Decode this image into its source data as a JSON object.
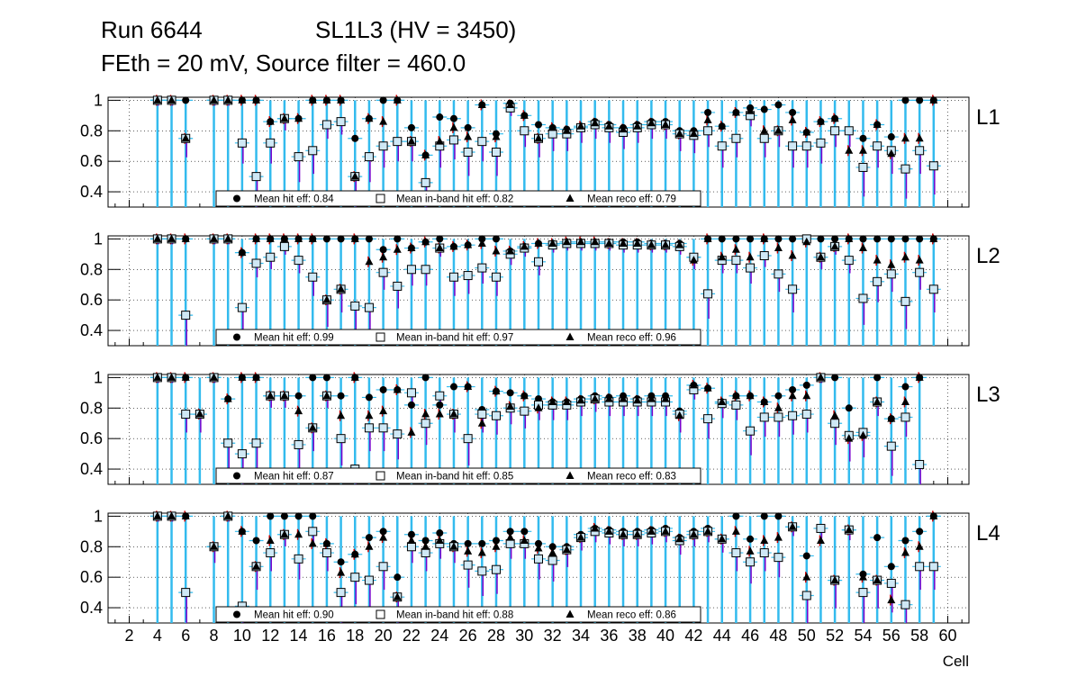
{
  "header": {
    "run": "Run 6644",
    "superlayer": "SL1L3 (HV = 3450)",
    "settings": "FEth = 20 mV, Source filter = 460.0"
  },
  "colors": {
    "hit_err": "#33bbee",
    "inband_err": "#7700cc",
    "reco_err": "#cc0000",
    "inband_fill": "#cfe8f5",
    "marker": "#000000"
  },
  "chart_data": {
    "type": "scatter",
    "xlabel": "Cell",
    "xlim": [
      0.5,
      61.5
    ],
    "ylim": [
      0.3,
      1.02
    ],
    "x_ticks": [
      2,
      4,
      6,
      8,
      10,
      12,
      14,
      16,
      18,
      20,
      22,
      24,
      26,
      28,
      30,
      32,
      34,
      36,
      38,
      40,
      42,
      44,
      46,
      48,
      50,
      52,
      54,
      56,
      58,
      60
    ],
    "x_tick_labels": [
      "2",
      "4",
      "6",
      "8",
      "10",
      "12",
      "14",
      "16",
      "18",
      "20",
      "22",
      "24",
      "26",
      "28",
      "30",
      "32",
      "34",
      "36",
      "38",
      "40",
      "42",
      "44",
      "46",
      "48",
      "50",
      "52",
      "54",
      "56",
      "58",
      "60"
    ],
    "y_ticks": [
      0.4,
      0.6,
      0.8,
      1.0
    ],
    "y_tick_labels": [
      "0.4",
      "0.6",
      "0.8",
      "1"
    ],
    "grid": true,
    "legend_location": "bottom-center",
    "panels": [
      {
        "label": "L1",
        "legend": [
          "Mean hit  eff: 0.84",
          "Mean in-band hit eff: 0.82",
          "Mean reco eff: 0.79"
        ],
        "cells": [
          4,
          5,
          6,
          8,
          9,
          10,
          11,
          12,
          13,
          14,
          15,
          16,
          17,
          18,
          19,
          20,
          21,
          22,
          23,
          24,
          25,
          26,
          27,
          28,
          29,
          30,
          31,
          32,
          33,
          34,
          35,
          36,
          37,
          38,
          39,
          40,
          41,
          42,
          43,
          44,
          45,
          46,
          47,
          48,
          49,
          50,
          51,
          52,
          53,
          54,
          55,
          56,
          57,
          58,
          59
        ],
        "hit": [
          1.0,
          1.0,
          1.0,
          1.0,
          1.0,
          1.0,
          1.0,
          0.86,
          0.88,
          0.88,
          1.0,
          1.0,
          1.0,
          0.75,
          0.88,
          1.0,
          1.0,
          0.82,
          0.64,
          0.89,
          0.88,
          0.82,
          0.97,
          0.78,
          0.98,
          0.9,
          0.84,
          0.82,
          0.81,
          0.83,
          0.86,
          0.84,
          0.82,
          0.84,
          0.86,
          0.86,
          0.8,
          0.8,
          0.92,
          0.83,
          0.92,
          0.95,
          0.94,
          0.97,
          0.92,
          0.79,
          0.86,
          0.88,
          0.8,
          0.75,
          0.84,
          0.76,
          1.0,
          1.0,
          1.0
        ],
        "inband": [
          1.0,
          1.0,
          0.75,
          1.0,
          1.0,
          0.72,
          0.5,
          0.72,
          0.88,
          0.63,
          0.67,
          0.84,
          0.86,
          0.5,
          0.63,
          0.7,
          0.73,
          0.73,
          0.46,
          0.7,
          0.74,
          0.66,
          0.73,
          0.66,
          0.95,
          0.8,
          0.75,
          0.78,
          0.78,
          0.82,
          0.84,
          0.82,
          0.79,
          0.82,
          0.84,
          0.84,
          0.78,
          0.77,
          0.8,
          0.7,
          0.75,
          0.9,
          0.75,
          0.8,
          0.7,
          0.7,
          0.72,
          0.8,
          0.8,
          0.56,
          0.7,
          0.67,
          0.55,
          0.67,
          0.57
        ],
        "reco": [
          1.0,
          1.0,
          0.75,
          1.0,
          1.0,
          1.0,
          1.0,
          0.86,
          0.88,
          0.88,
          1.0,
          1.0,
          1.0,
          0.5,
          0.88,
          0.86,
          1.0,
          0.73,
          0.64,
          0.73,
          0.82,
          0.76,
          0.97,
          0.76,
          0.97,
          0.9,
          0.75,
          0.82,
          0.8,
          0.83,
          0.85,
          0.83,
          0.81,
          0.83,
          0.85,
          0.84,
          0.78,
          0.78,
          0.87,
          0.83,
          0.92,
          0.93,
          0.8,
          0.8,
          0.87,
          0.79,
          0.86,
          0.88,
          0.67,
          0.67,
          0.84,
          0.65,
          0.75,
          0.75,
          1.0
        ]
      },
      {
        "label": "L2",
        "legend": [
          "Mean hit  eff: 0.99",
          "Mean in-band hit eff: 0.97",
          "Mean reco eff: 0.96"
        ],
        "cells": [
          4,
          5,
          6,
          8,
          9,
          10,
          11,
          12,
          13,
          14,
          15,
          16,
          17,
          18,
          19,
          20,
          21,
          22,
          23,
          24,
          25,
          26,
          27,
          28,
          29,
          30,
          31,
          32,
          33,
          34,
          35,
          36,
          37,
          38,
          39,
          40,
          41,
          42,
          43,
          44,
          45,
          46,
          47,
          48,
          49,
          50,
          51,
          52,
          53,
          54,
          55,
          56,
          57,
          58,
          59
        ],
        "hit": [
          1.0,
          1.0,
          1.0,
          1.0,
          1.0,
          0.91,
          1.0,
          1.0,
          1.0,
          1.0,
          1.0,
          1.0,
          1.0,
          1.0,
          1.0,
          0.93,
          1.0,
          0.94,
          0.98,
          1.0,
          0.95,
          0.96,
          1.0,
          1.0,
          0.92,
          0.95,
          0.97,
          0.97,
          0.98,
          0.98,
          0.98,
          0.98,
          0.98,
          0.98,
          0.97,
          0.97,
          0.97,
          0.88,
          1.0,
          1.0,
          1.0,
          1.0,
          1.0,
          1.0,
          1.0,
          1.0,
          1.0,
          1.0,
          1.0,
          1.0,
          1.0,
          1.0,
          1.0,
          1.0,
          1.0
        ],
        "inband": [
          1.0,
          1.0,
          0.5,
          1.0,
          1.0,
          0.55,
          0.84,
          0.88,
          0.95,
          0.86,
          0.75,
          0.6,
          0.67,
          0.56,
          0.55,
          0.78,
          0.69,
          0.8,
          0.8,
          0.94,
          0.75,
          0.76,
          0.81,
          0.75,
          0.9,
          0.94,
          0.85,
          0.96,
          0.97,
          0.97,
          0.97,
          0.97,
          0.96,
          0.96,
          0.96,
          0.96,
          0.95,
          0.88,
          0.64,
          0.86,
          0.86,
          0.81,
          0.89,
          0.77,
          0.67,
          1.0,
          0.88,
          0.95,
          0.86,
          0.61,
          0.72,
          0.77,
          0.59,
          0.78,
          0.67
        ],
        "reco": [
          1.0,
          1.0,
          1.0,
          1.0,
          1.0,
          0.91,
          1.0,
          1.0,
          1.0,
          1.0,
          1.0,
          0.6,
          0.67,
          1.0,
          0.85,
          0.88,
          0.93,
          0.94,
          0.98,
          0.94,
          0.95,
          0.96,
          0.97,
          0.92,
          0.92,
          0.95,
          0.97,
          0.97,
          0.98,
          0.98,
          0.98,
          0.97,
          0.97,
          0.97,
          0.96,
          0.96,
          0.96,
          0.86,
          1.0,
          0.88,
          0.93,
          0.88,
          1.0,
          0.94,
          0.89,
          0.98,
          0.88,
          0.95,
          1.0,
          0.94,
          0.86,
          0.83,
          0.88,
          0.86,
          1.0
        ]
      },
      {
        "label": "L3",
        "legend": [
          "Mean hit  eff: 0.87",
          "Mean in-band hit eff: 0.85",
          "Mean reco eff: 0.83"
        ],
        "cells": [
          4,
          5,
          6,
          7,
          8,
          9,
          10,
          11,
          12,
          13,
          14,
          15,
          16,
          17,
          18,
          19,
          20,
          21,
          22,
          23,
          24,
          25,
          26,
          27,
          28,
          29,
          30,
          31,
          32,
          33,
          34,
          35,
          36,
          37,
          38,
          39,
          40,
          41,
          42,
          43,
          44,
          45,
          46,
          47,
          48,
          49,
          50,
          51,
          52,
          53,
          54,
          55,
          56,
          57,
          58
        ],
        "hit": [
          1.0,
          1.0,
          1.0,
          0.76,
          1.0,
          0.86,
          1.0,
          1.0,
          0.88,
          0.88,
          0.88,
          1.0,
          1.0,
          0.88,
          1.0,
          0.87,
          0.92,
          0.92,
          0.82,
          1.0,
          0.82,
          0.94,
          0.94,
          0.79,
          0.91,
          0.9,
          0.88,
          0.86,
          0.84,
          0.84,
          0.86,
          0.88,
          0.87,
          0.88,
          0.86,
          0.88,
          0.88,
          0.78,
          0.95,
          0.93,
          0.84,
          0.88,
          0.88,
          0.84,
          0.88,
          0.92,
          0.95,
          1.0,
          1.0,
          0.8,
          0.62,
          1.0,
          0.73,
          0.94,
          1.0
        ],
        "inband": [
          1.0,
          1.0,
          0.76,
          0.76,
          1.0,
          0.57,
          0.5,
          0.57,
          0.88,
          0.88,
          0.56,
          0.67,
          0.88,
          0.6,
          0.4,
          0.67,
          0.67,
          0.63,
          0.9,
          0.7,
          0.88,
          0.76,
          0.6,
          0.76,
          0.75,
          0.8,
          0.78,
          0.82,
          0.82,
          0.82,
          0.84,
          0.86,
          0.84,
          0.84,
          0.84,
          0.84,
          0.84,
          0.76,
          0.92,
          0.73,
          0.83,
          0.82,
          0.65,
          0.74,
          0.74,
          0.75,
          0.76,
          1.0,
          0.7,
          0.62,
          0.64,
          0.84,
          0.55,
          0.74,
          0.43
        ],
        "reco": [
          1.0,
          1.0,
          1.0,
          0.76,
          1.0,
          0.86,
          1.0,
          1.0,
          0.88,
          0.88,
          0.78,
          0.67,
          0.88,
          0.75,
          1.0,
          0.75,
          0.78,
          0.92,
          0.64,
          0.76,
          0.76,
          0.76,
          0.94,
          0.7,
          0.91,
          0.81,
          0.88,
          0.8,
          0.84,
          0.84,
          0.85,
          0.86,
          0.86,
          0.86,
          0.85,
          0.86,
          0.86,
          0.75,
          0.95,
          0.93,
          0.84,
          0.88,
          0.88,
          0.84,
          0.8,
          0.88,
          0.88,
          1.0,
          0.75,
          0.6,
          0.62,
          0.84,
          0.73,
          0.84,
          1.0
        ]
      },
      {
        "label": "L4",
        "legend": [
          "Mean hit  eff: 0.90",
          "Mean in-band hit eff: 0.88",
          "Mean reco eff: 0.86"
        ],
        "cells": [
          4,
          5,
          6,
          8,
          9,
          10,
          11,
          12,
          13,
          14,
          15,
          16,
          17,
          18,
          19,
          20,
          21,
          22,
          23,
          24,
          25,
          26,
          27,
          28,
          29,
          30,
          31,
          32,
          33,
          34,
          35,
          36,
          37,
          38,
          39,
          40,
          41,
          42,
          43,
          44,
          45,
          46,
          47,
          48,
          49,
          50,
          51,
          52,
          53,
          54,
          55,
          56,
          57,
          58,
          59
        ],
        "hit": [
          1.0,
          1.0,
          1.0,
          0.8,
          1.0,
          0.9,
          0.84,
          1.0,
          1.0,
          1.0,
          1.0,
          0.82,
          0.7,
          0.75,
          0.86,
          0.9,
          0.6,
          0.88,
          0.84,
          0.89,
          0.82,
          0.82,
          0.82,
          0.84,
          0.9,
          0.9,
          0.82,
          0.8,
          0.8,
          0.88,
          0.92,
          0.91,
          0.9,
          0.9,
          0.91,
          0.92,
          0.86,
          0.9,
          0.92,
          0.85,
          1.0,
          0.85,
          1.0,
          1.0,
          0.93,
          0.74,
          0.92,
          0.58,
          0.91,
          0.62,
          0.86,
          0.67,
          0.84,
          0.9,
          1.0
        ],
        "inband": [
          1.0,
          1.0,
          0.5,
          0.8,
          1.0,
          0.41,
          0.67,
          0.76,
          0.88,
          0.72,
          0.9,
          0.76,
          0.5,
          0.6,
          0.58,
          0.67,
          0.47,
          0.8,
          0.76,
          0.82,
          0.8,
          0.68,
          0.64,
          0.65,
          0.82,
          0.82,
          0.72,
          0.71,
          0.78,
          0.86,
          0.9,
          0.89,
          0.88,
          0.88,
          0.89,
          0.9,
          0.84,
          0.88,
          0.9,
          0.85,
          0.76,
          0.7,
          0.76,
          0.73,
          0.93,
          0.48,
          0.92,
          0.58,
          0.91,
          0.5,
          0.58,
          0.56,
          0.42,
          0.67,
          0.67
        ],
        "reco": [
          1.0,
          1.0,
          1.0,
          0.8,
          1.0,
          0.9,
          0.67,
          0.84,
          0.88,
          0.88,
          0.82,
          0.82,
          0.63,
          0.75,
          0.8,
          0.86,
          0.47,
          0.84,
          0.8,
          0.84,
          0.8,
          0.77,
          0.76,
          0.8,
          0.86,
          0.84,
          0.79,
          0.76,
          0.78,
          0.86,
          0.92,
          0.9,
          0.88,
          0.88,
          0.9,
          0.9,
          0.85,
          0.88,
          0.9,
          0.85,
          0.9,
          0.77,
          0.84,
          0.86,
          0.93,
          0.6,
          0.84,
          0.58,
          0.91,
          0.6,
          0.58,
          0.45,
          0.76,
          0.8,
          1.0
        ]
      }
    ]
  }
}
